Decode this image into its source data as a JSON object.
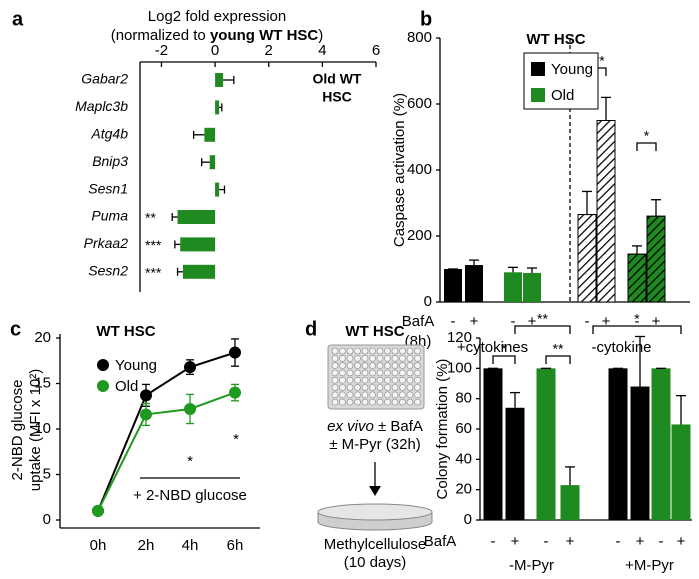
{
  "chart_data": [
    {
      "panel": "a",
      "type": "hbar",
      "title": "Log2 fold expression",
      "subtitle": [
        "(normalized to ",
        "young WT HSC",
        ")"
      ],
      "annotation": [
        "Old WT",
        "HSC"
      ],
      "categories": [
        "Gabar2",
        "Maplc3b",
        "Atg4b",
        "Bnip3",
        "Sesn1",
        "Puma",
        "Prkaa2",
        "Sesn2"
      ],
      "values": [
        0.3,
        0.15,
        -0.4,
        -0.2,
        0.15,
        -1.4,
        -1.3,
        -1.2
      ],
      "errors": [
        0.4,
        0.1,
        0.4,
        0.3,
        0.2,
        0.2,
        0.2,
        0.2
      ],
      "significance": [
        null,
        null,
        null,
        null,
        null,
        "**",
        "***",
        "***"
      ],
      "color": "#1f8a1f",
      "xlim": [
        -2.8,
        6
      ],
      "xticks": [
        -2,
        0,
        2,
        4,
        6
      ]
    },
    {
      "panel": "b",
      "type": "grouped_bar",
      "title": "WT HSC",
      "ylabel": "Caspase activation (%)",
      "x_label": [
        "BafA",
        "(8h)"
      ],
      "bafa": [
        "-",
        "+"
      ],
      "groups": [
        "+cytokines",
        "-cytokine"
      ],
      "hatched": [
        false,
        true
      ],
      "series": [
        {
          "name": "Young",
          "color": "#000000",
          "values": [
            100,
            112,
            265,
            550
          ],
          "errors": [
            0,
            15,
            70,
            70
          ]
        },
        {
          "name": "Old",
          "color": "#1f8a1f",
          "values": [
            90,
            88,
            145,
            260
          ],
          "errors": [
            15,
            15,
            25,
            50
          ]
        }
      ],
      "significance": [
        "***",
        "*"
      ],
      "ylim": [
        0,
        800
      ],
      "yticks": [
        0,
        200,
        400,
        600,
        800
      ]
    },
    {
      "panel": "c",
      "type": "line",
      "title": "WT HSC",
      "ylabel": [
        "2-NBD glucose",
        "uptake (MFI x 10²)"
      ],
      "categories": [
        "0h",
        "2h",
        "4h",
        "6h"
      ],
      "series": [
        {
          "name": "Young",
          "color": "#000000",
          "values": [
            1,
            13.7,
            16.8,
            18.4
          ],
          "errors": [
            0.3,
            1.2,
            0.8,
            1.5
          ]
        },
        {
          "name": "Old",
          "color": "#1f9a1f",
          "values": [
            1,
            11.6,
            12.2,
            14.0
          ],
          "errors": [
            0.3,
            1.2,
            1.6,
            0.9
          ]
        }
      ],
      "annotations": [
        "*",
        "*",
        "+ 2-NBD glucose"
      ],
      "ylim": [
        0,
        20
      ],
      "yticks": [
        0,
        5,
        10,
        15,
        20
      ]
    },
    {
      "panel": "d",
      "type": "grouped_bar",
      "schematic": {
        "title": "WT HSC",
        "protocol": [
          [
            "ex vivo",
            " ± BafA"
          ],
          "± M-Pyr (32h)"
        ],
        "readout": [
          "Methylcellulose",
          "(10 days)"
        ]
      },
      "ylabel": "Colony formation (%)",
      "x_label": [
        "BafA"
      ],
      "bafa": [
        "-",
        "+"
      ],
      "groups": [
        "-M-Pyr",
        "+M-Pyr"
      ],
      "hatched": [
        false,
        false
      ],
      "series": [
        {
          "color": "#000000",
          "values": [
            100,
            74,
            100,
            88
          ],
          "errors": [
            0,
            10,
            0,
            33
          ]
        },
        {
          "color": "#1f8a1f",
          "values": [
            100,
            23,
            100,
            63
          ],
          "errors": [
            0,
            12,
            0,
            19
          ]
        }
      ],
      "significance": [
        "*",
        "**",
        "**",
        "*"
      ],
      "ylim": [
        0,
        120
      ],
      "yticks": [
        0,
        20,
        40,
        60,
        80,
        100,
        120
      ]
    }
  ]
}
